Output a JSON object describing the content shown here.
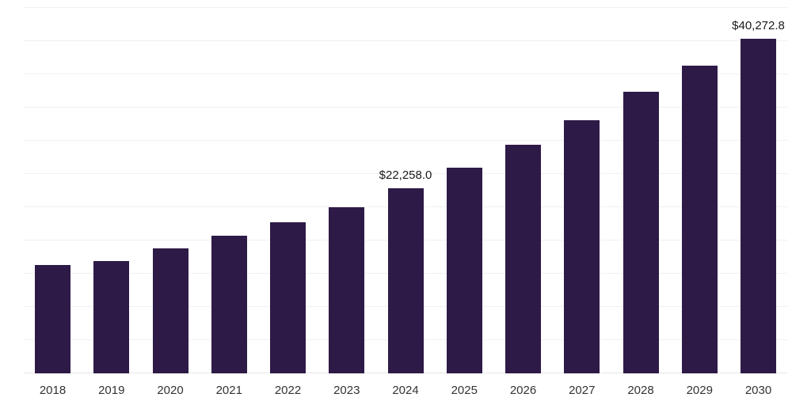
{
  "chart_data": {
    "type": "bar",
    "title": "",
    "xlabel": "",
    "ylabel": "",
    "categories": [
      "2018",
      "2019",
      "2020",
      "2021",
      "2022",
      "2023",
      "2024",
      "2025",
      "2026",
      "2027",
      "2028",
      "2029",
      "2030"
    ],
    "values": [
      13000,
      13550,
      15000,
      16600,
      18200,
      20000,
      22258.0,
      24800,
      27500,
      30500,
      33900,
      37000,
      40272.8
    ],
    "annotations": [
      {
        "category": "2024",
        "text": "$22,258.0"
      },
      {
        "category": "2030",
        "text": "$40,272.8"
      }
    ],
    "ylim": [
      0,
      44000
    ],
    "grid": true,
    "gridline_step": 4000,
    "legend": "none",
    "bar_color": "#2e1a47",
    "gridline_color": "#f0f0f0",
    "tick_color": "#333333",
    "annotation_color": "#1a1a1a",
    "background_color": "#ffffff"
  }
}
